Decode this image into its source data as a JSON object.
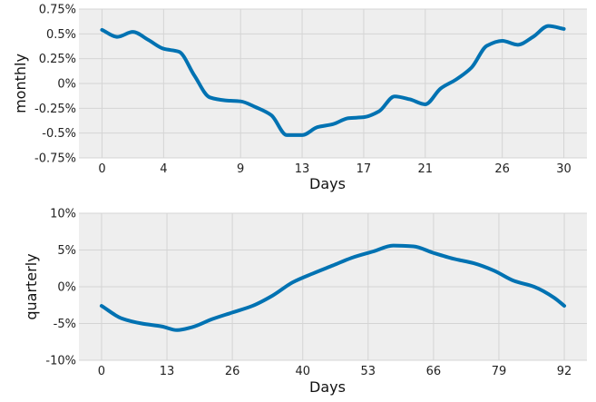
{
  "chart_data": [
    {
      "type": "line",
      "xlabel": "Days",
      "ylabel": "monthly",
      "xlim": [
        -1.5,
        31.5
      ],
      "ylim": [
        -0.75,
        0.75
      ],
      "grid": true,
      "background": "#eeeeee",
      "line_color": "#0072b2",
      "x_ticks": [
        0,
        4,
        9,
        13,
        17,
        21,
        26,
        30
      ],
      "x_tick_labels": [
        "0",
        "4",
        "9",
        "13",
        "17",
        "21",
        "26",
        "30"
      ],
      "y_ticks": [
        0.75,
        0.5,
        0.25,
        0,
        -0.25,
        -0.5,
        -0.75
      ],
      "y_tick_labels": [
        "0.75%",
        "0.5%",
        "0.25%",
        "0%",
        "-0.25%",
        "-0.5%",
        "-0.75%"
      ],
      "series": [
        {
          "x": [
            0,
            1,
            2,
            3,
            4,
            5,
            6,
            7,
            8,
            9,
            10,
            11,
            12,
            13,
            14,
            15,
            16,
            17,
            18,
            19,
            20,
            21,
            22,
            23,
            24,
            25,
            26,
            27,
            28,
            29,
            30
          ],
          "values": [
            0.54,
            0.47,
            0.52,
            0.44,
            0.35,
            0.32,
            0.08,
            -0.14,
            -0.17,
            -0.18,
            -0.24,
            -0.32,
            -0.52,
            -0.52,
            -0.44,
            -0.41,
            -0.35,
            -0.34,
            -0.28,
            -0.13,
            -0.16,
            -0.21,
            -0.05,
            0.04,
            0.16,
            0.38,
            0.43,
            0.39,
            0.47,
            0.58,
            0.55
          ]
        }
      ]
    },
    {
      "type": "line",
      "xlabel": "Days",
      "ylabel": "quarterly",
      "xlim": [
        -4.5,
        96.5
      ],
      "ylim": [
        -10,
        10
      ],
      "grid": true,
      "background": "#eeeeee",
      "line_color": "#0072b2",
      "x_ticks": [
        0,
        13,
        26,
        40,
        53,
        66,
        79,
        92
      ],
      "x_tick_labels": [
        "0",
        "13",
        "26",
        "40",
        "53",
        "66",
        "79",
        "92"
      ],
      "y_ticks": [
        10,
        5,
        0,
        -5,
        -10
      ],
      "y_tick_labels": [
        "10%",
        "5%",
        "0%",
        "-5%",
        "-10%"
      ],
      "series": [
        {
          "x": [
            0,
            4,
            8,
            12,
            15,
            18,
            22,
            26,
            30,
            34,
            38,
            42,
            46,
            50,
            54,
            58,
            62,
            66,
            70,
            74,
            78,
            82,
            86,
            90,
            92
          ],
          "values": [
            -2.6,
            -4.3,
            -5.0,
            -5.4,
            -5.9,
            -5.5,
            -4.4,
            -3.5,
            -2.6,
            -1.2,
            0.6,
            1.8,
            2.9,
            4.0,
            4.8,
            5.6,
            5.5,
            4.6,
            3.8,
            3.2,
            2.2,
            0.8,
            0.0,
            -1.5,
            -2.6
          ]
        }
      ]
    }
  ]
}
